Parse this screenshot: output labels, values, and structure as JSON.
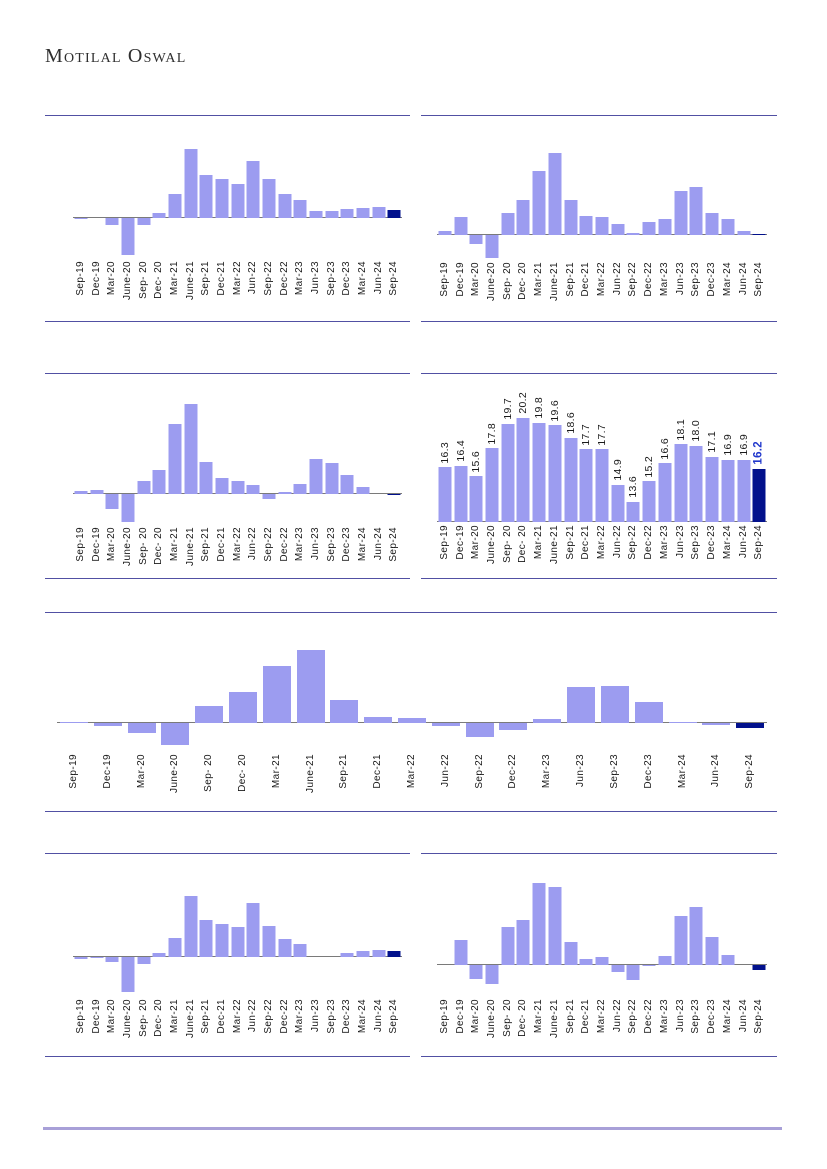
{
  "brand": {
    "name": "Motilal Oswal"
  },
  "colors": {
    "bar": "#9C9CF0",
    "last_bar": "#02118C",
    "axis": "#7a7a7a",
    "border": "#5150A3",
    "footer_line": "#A8A0D8",
    "label": "#1a1a1a",
    "value_label_highlight": "#2238CC",
    "logo": "#2e2e2e"
  },
  "chart_data": [
    {
      "id": "c1",
      "type": "bar",
      "title": "",
      "grid": false,
      "legend": false,
      "categories": [
        "Sep-19",
        "Dec-19",
        "Mar-20",
        "June-20",
        "Sep- 20",
        "Dec- 20",
        "Mar-21",
        "June-21",
        "Sep-21",
        "Dec-21",
        "Mar-22",
        "Jun-22",
        "Sep-22",
        "Dec-22",
        "Mar-23",
        "Jun-23",
        "Sep-23",
        "Dec-23",
        "Mar-24",
        "Jun-24",
        "Sep-24"
      ],
      "values": [
        -1,
        0,
        -7,
        -37,
        -7,
        5,
        24,
        69,
        43,
        39,
        34,
        57,
        39,
        24,
        18,
        7,
        7,
        9,
        10,
        11,
        8
      ],
      "ylim": [
        -40,
        94
      ],
      "highlight_last_bar": true
    },
    {
      "id": "c2",
      "type": "bar",
      "title": "",
      "grid": false,
      "legend": false,
      "categories": [
        "Sep-19",
        "Dec-19",
        "Mar-20",
        "June-20",
        "Sep- 20",
        "Dec- 20",
        "Mar-21",
        "June-21",
        "Sep-21",
        "Dec-21",
        "Mar-22",
        "Jun-22",
        "Sep-22",
        "Dec-22",
        "Mar-23",
        "Jun-23",
        "Sep-23",
        "Dec-23",
        "Mar-24",
        "Jun-24",
        "Sep-24"
      ],
      "values": [
        4,
        18,
        -9,
        -23,
        22,
        35,
        64,
        82,
        35,
        19,
        18,
        11,
        2,
        13,
        16,
        44,
        48,
        22,
        16,
        4,
        1
      ],
      "ylim": [
        -24,
        111
      ],
      "highlight_last_bar": true
    },
    {
      "id": "c3",
      "type": "bar",
      "title": "",
      "grid": false,
      "legend": false,
      "categories": [
        "Sep-19",
        "Dec-19",
        "Mar-20",
        "June-20",
        "Sep- 20",
        "Dec- 20",
        "Mar-21",
        "June-21",
        "Sep-21",
        "Dec-21",
        "Mar-22",
        "Jun-22",
        "Sep-22",
        "Dec-22",
        "Mar-23",
        "Jun-23",
        "Sep-23",
        "Dec-23",
        "Mar-24",
        "Jun-24",
        "Sep-24"
      ],
      "values": [
        3,
        4,
        -15,
        -28,
        13,
        24,
        70,
        90,
        32,
        16,
        13,
        9,
        -5,
        2,
        10,
        35,
        31,
        19,
        7,
        0,
        -1
      ],
      "ylim": [
        -30,
        112
      ],
      "highlight_last_bar": true
    },
    {
      "id": "c4",
      "type": "bar",
      "title": "",
      "grid": false,
      "legend": false,
      "categories": [
        "Sep-19",
        "Dec-19",
        "Mar-20",
        "June-20",
        "Sep- 20",
        "Dec- 20",
        "Mar-21",
        "June-21",
        "Sep-21",
        "Dec-21",
        "Mar-22",
        "Jun-22",
        "Sep-22",
        "Dec-22",
        "Mar-23",
        "Jun-23",
        "Sep-23",
        "Dec-23",
        "Mar-24",
        "Jun-24",
        "Sep-24"
      ],
      "values": [
        16.3,
        16.4,
        15.6,
        17.8,
        19.7,
        20.2,
        19.8,
        19.6,
        18.6,
        17.7,
        17.7,
        14.9,
        13.6,
        15.2,
        16.6,
        18.1,
        18.0,
        17.1,
        16.9,
        16.9,
        16.2
      ],
      "value_labels": [
        "16.3",
        "16.4",
        "15.6",
        "17.8",
        "19.7",
        "20.2",
        "19.8",
        "19.6",
        "18.6",
        "17.7",
        "17.7",
        "14.9",
        "13.6",
        "15.2",
        "16.6",
        "18.1",
        "18.0",
        "17.1",
        "16.9",
        "16.9",
        "16.2"
      ],
      "baseline": "bottom",
      "ylim": [
        12,
        23
      ],
      "highlight_last_bar": true
    },
    {
      "id": "c5",
      "type": "bar",
      "title": "",
      "grid": false,
      "legend": false,
      "categories": [
        "Sep-19",
        "Dec-19",
        "Mar-20",
        "June-20",
        "Sep- 20",
        "Dec- 20",
        "Mar-21",
        "June-21",
        "Sep-21",
        "Dec-21",
        "Mar-22",
        "Jun-22",
        "Sep-22",
        "Dec-22",
        "Mar-23",
        "Jun-23",
        "Sep-23",
        "Dec-23",
        "Mar-24",
        "Jun-24",
        "Sep-24"
      ],
      "values": [
        1,
        -3,
        -10,
        -22,
        17,
        31,
        57,
        73,
        23,
        6,
        5,
        -3,
        -14,
        -7,
        4,
        36,
        37,
        21,
        1,
        -2,
        -5
      ],
      "ylim": [
        -28,
        102
      ],
      "highlight_last_bar": true
    },
    {
      "id": "c6",
      "type": "bar",
      "title": "",
      "grid": false,
      "legend": false,
      "categories": [
        "Sep-19",
        "Dec-19",
        "Mar-20",
        "June-20",
        "Sep- 20",
        "Dec- 20",
        "Mar-21",
        "June-21",
        "Sep-21",
        "Dec-21",
        "Mar-22",
        "Jun-22",
        "Sep-22",
        "Dec-22",
        "Mar-23",
        "Jun-23",
        "Sep-23",
        "Dec-23",
        "Mar-24",
        "Jun-24",
        "Sep-24"
      ],
      "values": [
        -2,
        -1,
        -5,
        -35,
        -7,
        4,
        19,
        61,
        37,
        33,
        30,
        54,
        31,
        18,
        13,
        0,
        0,
        4,
        6,
        7,
        6
      ],
      "ylim": [
        -39,
        95
      ],
      "highlight_last_bar": true
    },
    {
      "id": "c7",
      "type": "bar",
      "title": "",
      "grid": false,
      "legend": false,
      "categories": [
        "Sep-19",
        "Dec-19",
        "Mar-20",
        "June-20",
        "Sep- 20",
        "Dec- 20",
        "Mar-21",
        "June-21",
        "Sep-21",
        "Dec-21",
        "Mar-22",
        "Jun-22",
        "Sep-22",
        "Dec-22",
        "Mar-23",
        "Jun-23",
        "Sep-23",
        "Dec-23",
        "Mar-24",
        "Jun-24",
        "Sep-24"
      ],
      "values": [
        0,
        25,
        -14,
        -19,
        38,
        45,
        82,
        78,
        23,
        6,
        8,
        -7,
        -15,
        -1,
        9,
        49,
        58,
        28,
        10,
        0,
        -5
      ],
      "ylim": [
        -31,
        103
      ],
      "highlight_last_bar": true
    }
  ]
}
